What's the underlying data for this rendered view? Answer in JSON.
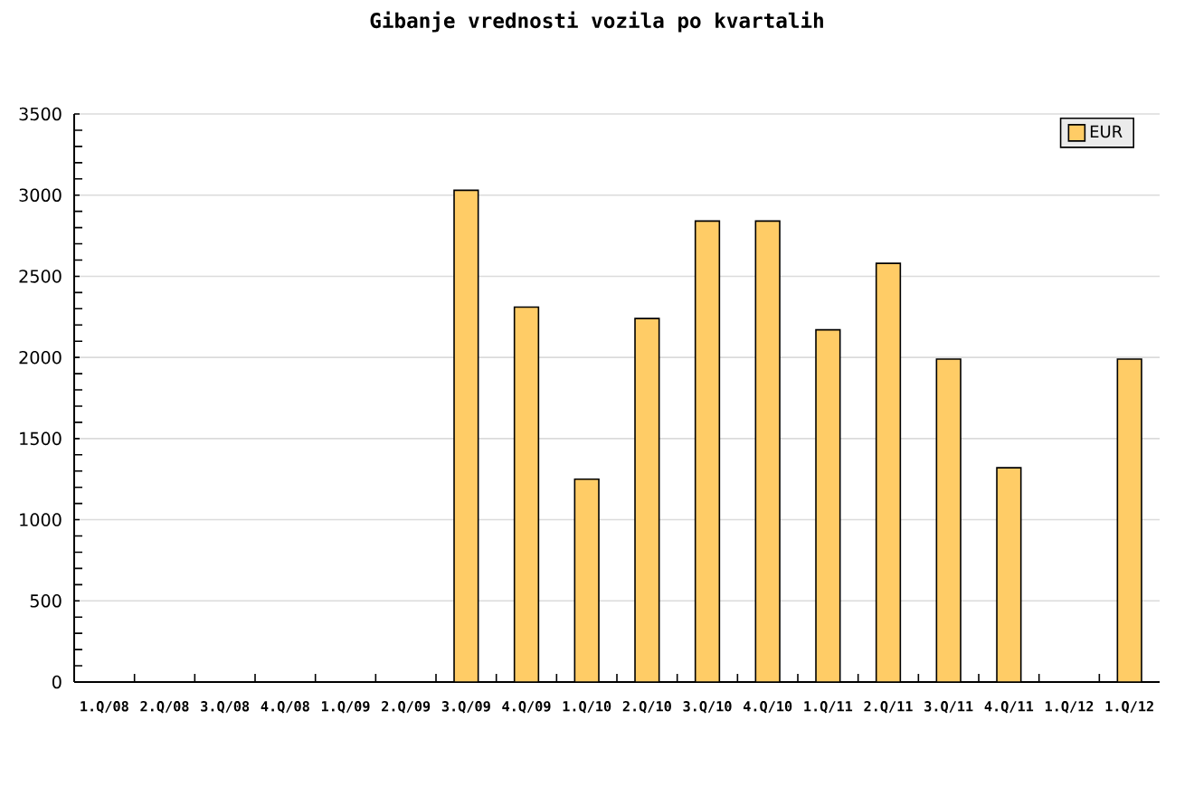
{
  "chart_data": {
    "type": "bar",
    "title": "Gibanje vrednosti vozila po kvartalih",
    "categories": [
      "1.Q/08",
      "2.Q/08",
      "3.Q/08",
      "4.Q/08",
      "1.Q/09",
      "2.Q/09",
      "3.Q/09",
      "4.Q/09",
      "1.Q/10",
      "2.Q/10",
      "3.Q/10",
      "4.Q/10",
      "1.Q/11",
      "2.Q/11",
      "3.Q/11",
      "4.Q/11",
      "1.Q/12",
      "1.Q/12"
    ],
    "series": [
      {
        "name": "EUR",
        "color": "#ffcc66",
        "values": [
          null,
          null,
          null,
          null,
          null,
          null,
          3030,
          2310,
          1250,
          2240,
          2840,
          2840,
          2170,
          2580,
          1990,
          1320,
          null,
          1990
        ]
      }
    ],
    "ylim": [
      0,
      3500
    ],
    "yticks": [
      0,
      500,
      1000,
      1500,
      2000,
      2500,
      3000,
      3500
    ],
    "grid": "y",
    "legend": "top right"
  }
}
